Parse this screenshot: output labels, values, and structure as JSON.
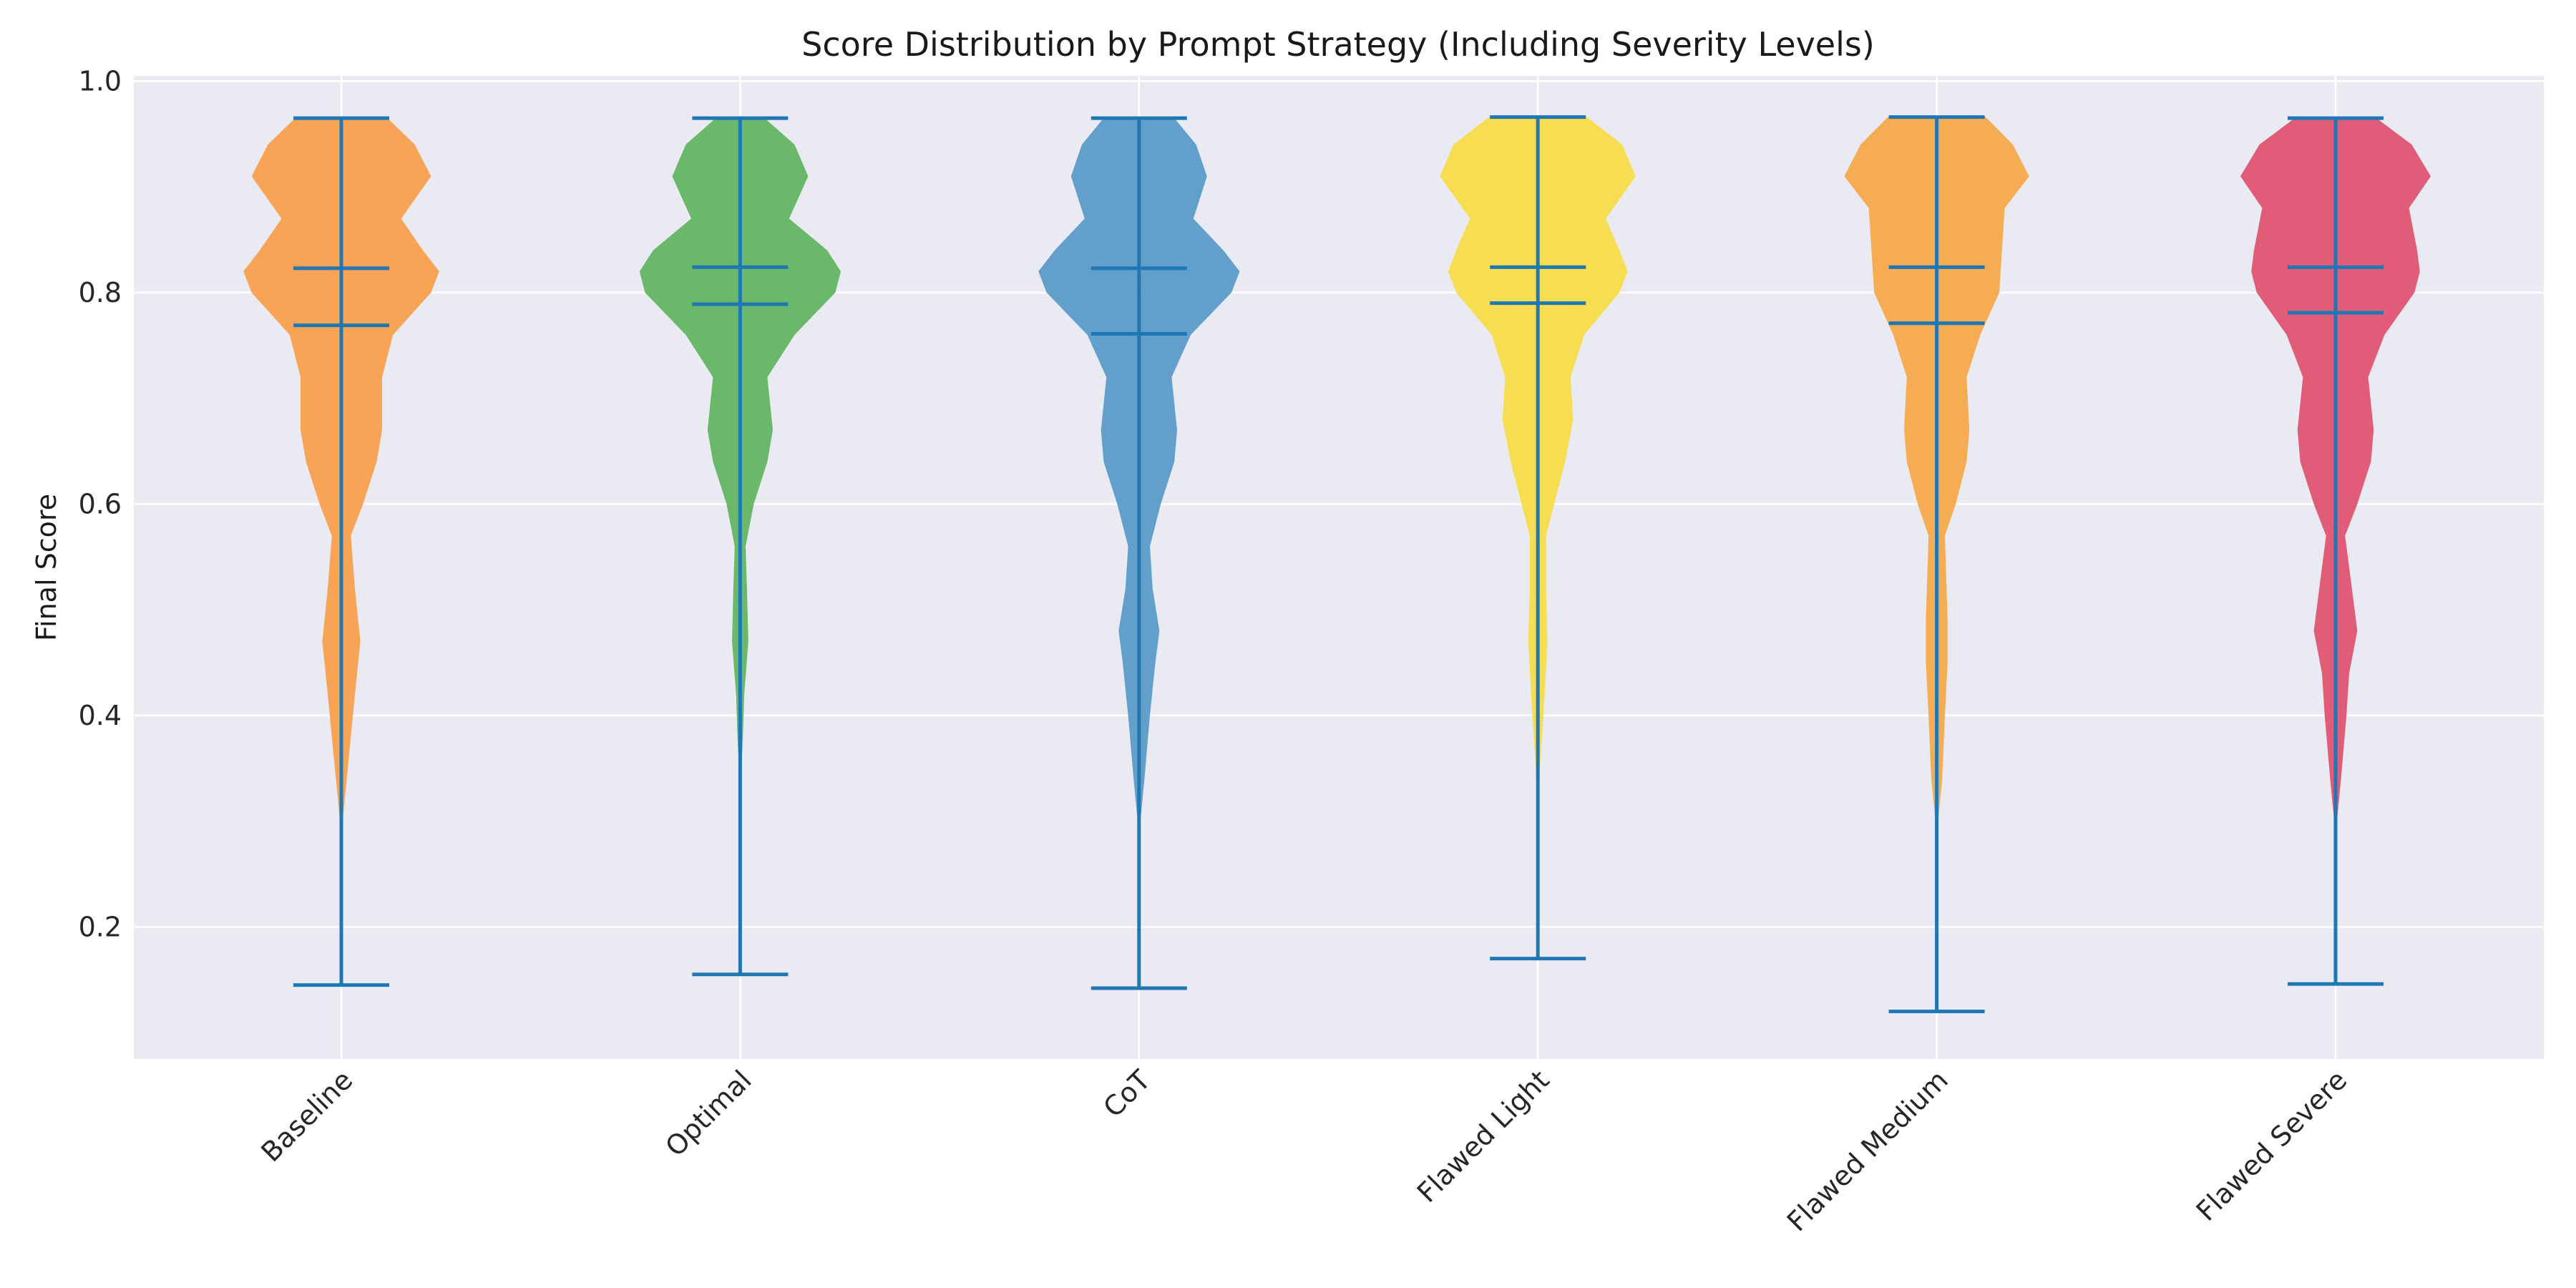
{
  "chart_data": {
    "type": "violin",
    "title": "Score Distribution by Prompt Strategy (Including Severity Levels)",
    "xlabel": "",
    "ylabel": "Final Score",
    "ylim": [
      0.075,
      1.005
    ],
    "yticks": [
      0.2,
      0.4,
      0.6,
      0.8,
      1.0
    ],
    "ytick_labels": [
      "0.2",
      "0.4",
      "0.6",
      "0.8",
      "1.0"
    ],
    "grid": true,
    "line_color": "#1f77b4",
    "categories": [
      "Baseline",
      "Optimal",
      "CoT",
      "Flawed Light",
      "Flawed Medium",
      "Flawed Severe"
    ],
    "series": [
      {
        "label": "Baseline",
        "color": "#f9a04e",
        "min": 0.145,
        "max": 0.965,
        "mean": 0.769,
        "median": 0.823,
        "density": [
          [
            0.15,
            0
          ],
          [
            0.22,
            0
          ],
          [
            0.3,
            0.005
          ],
          [
            0.34,
            0.02
          ],
          [
            0.38,
            0.035
          ],
          [
            0.42,
            0.05
          ],
          [
            0.47,
            0.07
          ],
          [
            0.52,
            0.05
          ],
          [
            0.57,
            0.035
          ],
          [
            0.6,
            0.08
          ],
          [
            0.64,
            0.13
          ],
          [
            0.67,
            0.15
          ],
          [
            0.72,
            0.15
          ],
          [
            0.76,
            0.19
          ],
          [
            0.8,
            0.33
          ],
          [
            0.82,
            0.36
          ],
          [
            0.84,
            0.3
          ],
          [
            0.87,
            0.22
          ],
          [
            0.91,
            0.33
          ],
          [
            0.94,
            0.27
          ],
          [
            0.965,
            0.17
          ]
        ]
      },
      {
        "label": "Optimal",
        "color": "#63b562",
        "min": 0.155,
        "max": 0.965,
        "mean": 0.789,
        "median": 0.824,
        "density": [
          [
            0.16,
            0
          ],
          [
            0.25,
            0
          ],
          [
            0.34,
            0.003
          ],
          [
            0.38,
            0.01
          ],
          [
            0.42,
            0.015
          ],
          [
            0.47,
            0.03
          ],
          [
            0.52,
            0.025
          ],
          [
            0.56,
            0.02
          ],
          [
            0.6,
            0.05
          ],
          [
            0.64,
            0.1
          ],
          [
            0.67,
            0.12
          ],
          [
            0.72,
            0.1
          ],
          [
            0.76,
            0.2
          ],
          [
            0.8,
            0.35
          ],
          [
            0.82,
            0.37
          ],
          [
            0.84,
            0.32
          ],
          [
            0.87,
            0.18
          ],
          [
            0.91,
            0.25
          ],
          [
            0.94,
            0.2
          ],
          [
            0.965,
            0.09
          ]
        ]
      },
      {
        "label": "CoT",
        "color": "#5b9bc8",
        "min": 0.142,
        "max": 0.965,
        "mean": 0.761,
        "median": 0.823,
        "density": [
          [
            0.14,
            0
          ],
          [
            0.17,
            0.005
          ],
          [
            0.2,
            0.005
          ],
          [
            0.23,
            0
          ],
          [
            0.3,
            0.005
          ],
          [
            0.34,
            0.02
          ],
          [
            0.4,
            0.04
          ],
          [
            0.45,
            0.06
          ],
          [
            0.48,
            0.075
          ],
          [
            0.52,
            0.05
          ],
          [
            0.56,
            0.04
          ],
          [
            0.6,
            0.08
          ],
          [
            0.64,
            0.13
          ],
          [
            0.67,
            0.14
          ],
          [
            0.72,
            0.12
          ],
          [
            0.76,
            0.19
          ],
          [
            0.8,
            0.34
          ],
          [
            0.82,
            0.37
          ],
          [
            0.84,
            0.31
          ],
          [
            0.87,
            0.2
          ],
          [
            0.91,
            0.25
          ],
          [
            0.94,
            0.21
          ],
          [
            0.965,
            0.13
          ]
        ]
      },
      {
        "label": "Flawed Light",
        "color": "#f7dc48",
        "min": 0.17,
        "max": 0.966,
        "mean": 0.79,
        "median": 0.824,
        "density": [
          [
            0.17,
            0
          ],
          [
            0.25,
            0
          ],
          [
            0.34,
            0.005
          ],
          [
            0.38,
            0.015
          ],
          [
            0.42,
            0.025
          ],
          [
            0.47,
            0.035
          ],
          [
            0.52,
            0.03
          ],
          [
            0.57,
            0.03
          ],
          [
            0.6,
            0.06
          ],
          [
            0.64,
            0.1
          ],
          [
            0.68,
            0.13
          ],
          [
            0.72,
            0.12
          ],
          [
            0.76,
            0.17
          ],
          [
            0.8,
            0.3
          ],
          [
            0.82,
            0.33
          ],
          [
            0.84,
            0.3
          ],
          [
            0.87,
            0.25
          ],
          [
            0.91,
            0.36
          ],
          [
            0.94,
            0.31
          ],
          [
            0.966,
            0.18
          ]
        ]
      },
      {
        "label": "Flawed Medium",
        "color": "#f7a94a",
        "min": 0.12,
        "max": 0.966,
        "mean": 0.771,
        "median": 0.824,
        "density": [
          [
            0.12,
            0
          ],
          [
            0.15,
            0.003
          ],
          [
            0.18,
            0.006
          ],
          [
            0.21,
            0.003
          ],
          [
            0.25,
            0
          ],
          [
            0.3,
            0.005
          ],
          [
            0.34,
            0.02
          ],
          [
            0.4,
            0.03
          ],
          [
            0.45,
            0.04
          ],
          [
            0.49,
            0.04
          ],
          [
            0.53,
            0.035
          ],
          [
            0.57,
            0.03
          ],
          [
            0.6,
            0.07
          ],
          [
            0.64,
            0.11
          ],
          [
            0.67,
            0.12
          ],
          [
            0.72,
            0.11
          ],
          [
            0.76,
            0.16
          ],
          [
            0.8,
            0.23
          ],
          [
            0.84,
            0.24
          ],
          [
            0.88,
            0.25
          ],
          [
            0.91,
            0.34
          ],
          [
            0.94,
            0.28
          ],
          [
            0.966,
            0.18
          ]
        ]
      },
      {
        "label": "Flawed Severe",
        "color": "#e05471",
        "min": 0.146,
        "max": 0.965,
        "mean": 0.781,
        "median": 0.824,
        "density": [
          [
            0.15,
            0
          ],
          [
            0.17,
            0.004
          ],
          [
            0.2,
            0.005
          ],
          [
            0.24,
            0
          ],
          [
            0.3,
            0.005
          ],
          [
            0.34,
            0.02
          ],
          [
            0.4,
            0.04
          ],
          [
            0.44,
            0.05
          ],
          [
            0.48,
            0.08
          ],
          [
            0.52,
            0.06
          ],
          [
            0.57,
            0.035
          ],
          [
            0.6,
            0.08
          ],
          [
            0.64,
            0.13
          ],
          [
            0.67,
            0.14
          ],
          [
            0.72,
            0.12
          ],
          [
            0.76,
            0.18
          ],
          [
            0.8,
            0.29
          ],
          [
            0.82,
            0.31
          ],
          [
            0.84,
            0.3
          ],
          [
            0.88,
            0.27
          ],
          [
            0.91,
            0.35
          ],
          [
            0.94,
            0.28
          ],
          [
            0.965,
            0.15
          ]
        ]
      }
    ]
  }
}
